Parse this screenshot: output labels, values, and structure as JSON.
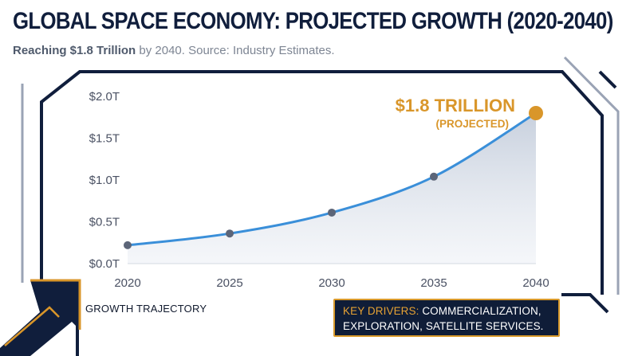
{
  "header": {
    "title": "GLOBAL SPACE ECONOMY: PROJECTED GROWTH (2020-2040)",
    "subtitle_bold": "Reaching $1.8 Trillion",
    "subtitle_rest": " by 2040. Source: Industry Estimates."
  },
  "footer": {
    "trajectory_label": "GROWTH TRAJECTORY",
    "drivers_highlight": "KEY DRIVERS:",
    "drivers_line1_rest": " COMMERCIALIZATION,",
    "drivers_line2": "EXPLORATION, SATELLITE SERVICES."
  },
  "colors": {
    "navy": "#101e3c",
    "line": "#3a8fd9",
    "marker": "#5c6578",
    "highlight": "#d9962a",
    "area_top": "#c9d2e0"
  },
  "icons": {
    "arrow": "arrow-up-right-icon"
  },
  "chart_data": {
    "type": "line",
    "x": [
      2020,
      2025,
      2030,
      2035,
      2040
    ],
    "y": [
      0.22,
      0.36,
      0.61,
      1.04,
      1.8
    ],
    "ylim": [
      0,
      2.0
    ],
    "yticks": [
      0,
      0.5,
      1.0,
      1.5,
      2.0
    ],
    "ytick_labels": [
      "$0.0T",
      "$0.5T",
      "$1.0T",
      "$1.5T",
      "$2.0T"
    ],
    "xtick_labels": [
      "2020",
      "2025",
      "2030",
      "2035",
      "2040"
    ],
    "grid": false,
    "callout": {
      "value": "$1.8 TRILLION",
      "note": "(PROJECTED)"
    }
  }
}
